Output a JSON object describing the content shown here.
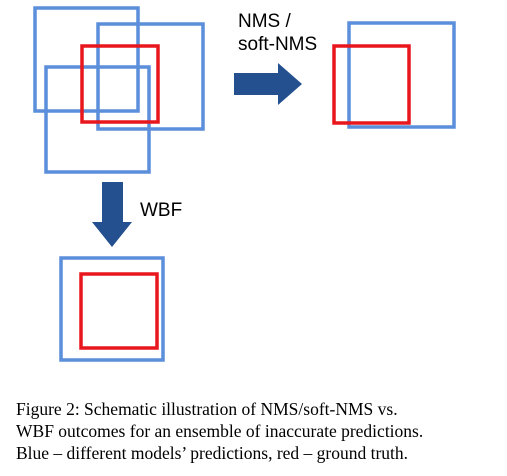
{
  "diagram": {
    "colors": {
      "prediction": "#5b8edb",
      "ground_truth": "#e8171d",
      "arrow": "#24508f"
    },
    "labels": {
      "nms_line1": "NMS /",
      "nms_line2": "soft-NMS",
      "wbf": "WBF"
    }
  },
  "caption": {
    "line1": "Figure 2:  Schematic illustration of NMS/soft-NMS vs.",
    "line2": "WBF outcomes for an ensemble of inaccurate predictions.",
    "line3": "Blue – different models’ predictions, red – ground truth."
  }
}
